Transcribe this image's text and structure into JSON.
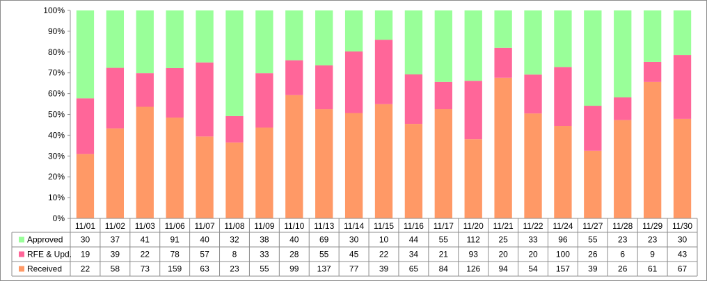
{
  "chart_data": {
    "type": "bar",
    "stacked": "percent",
    "categories": [
      "11/01",
      "11/02",
      "11/03",
      "11/06",
      "11/07",
      "11/08",
      "11/09",
      "11/10",
      "11/13",
      "11/14",
      "11/15",
      "11/16",
      "11/17",
      "11/20",
      "11/21",
      "11/22",
      "11/24",
      "11/27",
      "11/28",
      "11/29",
      "11/30"
    ],
    "series": [
      {
        "name": "Received",
        "color": "#ff9966",
        "values": [
          22,
          58,
          73,
          159,
          63,
          23,
          55,
          99,
          137,
          77,
          39,
          65,
          84,
          126,
          94,
          54,
          157,
          39,
          26,
          61,
          67
        ]
      },
      {
        "name": "RFE & Upd.",
        "color": "#ff6699",
        "values": [
          19,
          39,
          22,
          78,
          57,
          8,
          33,
          28,
          55,
          45,
          22,
          34,
          21,
          93,
          20,
          20,
          100,
          26,
          6,
          9,
          43
        ]
      },
      {
        "name": "Approved",
        "color": "#99ff99",
        "values": [
          30,
          37,
          41,
          91,
          40,
          32,
          38,
          40,
          69,
          30,
          10,
          44,
          55,
          112,
          25,
          33,
          96,
          55,
          23,
          23,
          30
        ]
      }
    ],
    "table_row_order": [
      "Approved",
      "RFE & Upd.",
      "Received"
    ],
    "ylim": [
      0,
      100
    ],
    "ytick_labels": [
      "0%",
      "10%",
      "20%",
      "30%",
      "40%",
      "50%",
      "60%",
      "70%",
      "80%",
      "90%",
      "100%"
    ],
    "grid": false,
    "legend": "data-table-left",
    "data_table": true
  }
}
